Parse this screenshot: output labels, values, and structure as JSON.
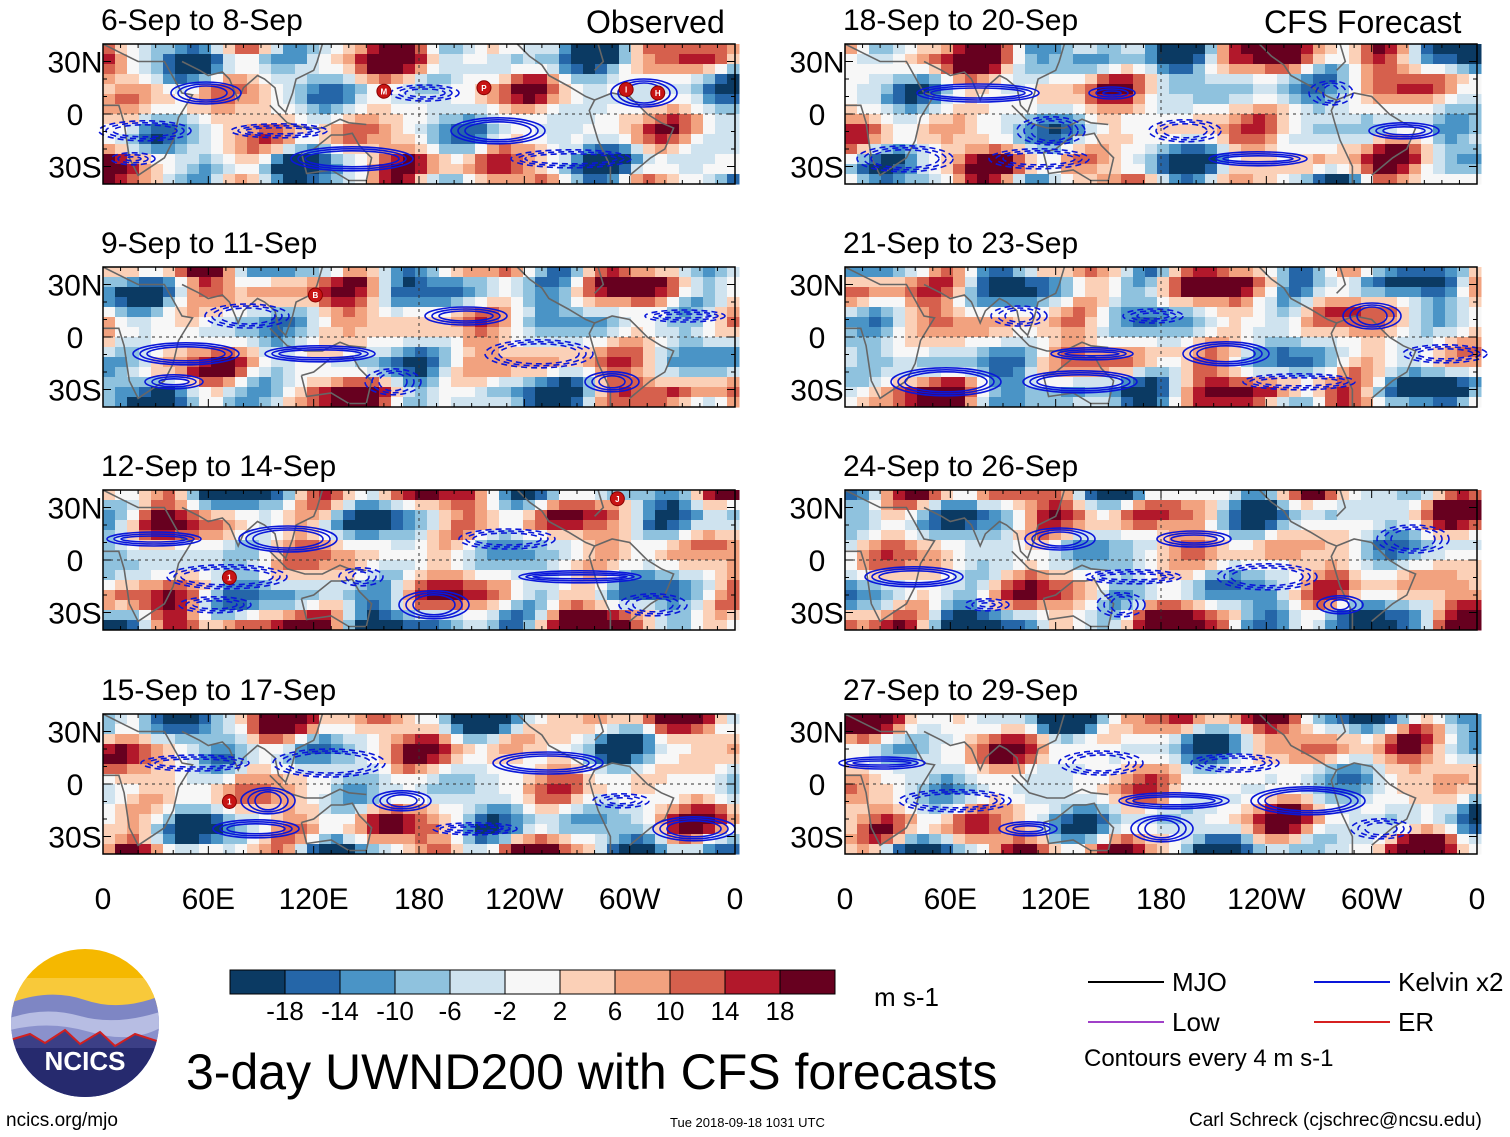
{
  "title": "3-day UWND200 with CFS forecasts",
  "labels": {
    "observed": "Observed",
    "forecast": "CFS Forecast"
  },
  "colorbar": {
    "colors": [
      "#0b3a63",
      "#2566a8",
      "#4a94c6",
      "#8fc2de",
      "#cfe3ef",
      "#f7f7f7",
      "#fbd0b7",
      "#f2a27f",
      "#d6604d",
      "#b2182b",
      "#67001f"
    ],
    "ticks": [
      "-18",
      "-14",
      "-10",
      "-6",
      "-2",
      "2",
      "6",
      "10",
      "14",
      "18"
    ],
    "units": "m s-1"
  },
  "legend": {
    "items": [
      {
        "label": "MJO",
        "color": "#000000"
      },
      {
        "label": "Kelvin x2",
        "color": "#0a17d9"
      },
      {
        "label": "Low",
        "color": "#a040c8"
      },
      {
        "label": "ER",
        "color": "#d62020"
      }
    ],
    "note": "Contours every 4 m s-1"
  },
  "footer": {
    "left": "ncics.org/mjo",
    "center": "Tue 2018-09-18 1031 UTC",
    "right": "Carl Schreck (cjschrec@ncsu.edu)"
  },
  "logo": {
    "text": "NCICS"
  },
  "chart_data": {
    "type": "heatmap",
    "variable": "200-hPa zonal wind anomaly (3-day mean)",
    "xaxis": {
      "ticks": [
        "0",
        "60E",
        "120E",
        "180",
        "120W",
        "60W",
        "0"
      ],
      "range": [
        0,
        360
      ]
    },
    "yaxis": {
      "ticks": [
        "30N",
        "0",
        "30S"
      ],
      "range": [
        -40,
        40
      ]
    },
    "panels": [
      {
        "period": "6-Sep to 8-Sep",
        "source": "Observed",
        "storms": [
          {
            "letter": "M",
            "lon": 160,
            "lat": 13
          },
          {
            "letter": "P",
            "lon": 217,
            "lat": 15
          },
          {
            "letter": "I",
            "lon": 298,
            "lat": 14
          },
          {
            "letter": "H",
            "lon": 316,
            "lat": 12
          }
        ]
      },
      {
        "period": "9-Sep to 11-Sep",
        "source": "Observed",
        "storms": [
          {
            "letter": "B",
            "lon": 121,
            "lat": 24
          }
        ]
      },
      {
        "period": "12-Sep to 14-Sep",
        "source": "Observed",
        "storms": [
          {
            "letter": "J",
            "lon": 293,
            "lat": 35
          },
          {
            "letter": "1",
            "lon": 72,
            "lat": -10
          }
        ]
      },
      {
        "period": "15-Sep to 17-Sep",
        "source": "Observed",
        "storms": [
          {
            "letter": "1",
            "lon": 72,
            "lat": -10
          }
        ]
      },
      {
        "period": "18-Sep to 20-Sep",
        "source": "CFS Forecast",
        "storms": []
      },
      {
        "period": "21-Sep to 23-Sep",
        "source": "CFS Forecast",
        "storms": []
      },
      {
        "period": "24-Sep to 26-Sep",
        "source": "CFS Forecast",
        "storms": []
      },
      {
        "period": "27-Sep to 29-Sep",
        "source": "CFS Forecast",
        "storms": []
      }
    ]
  }
}
